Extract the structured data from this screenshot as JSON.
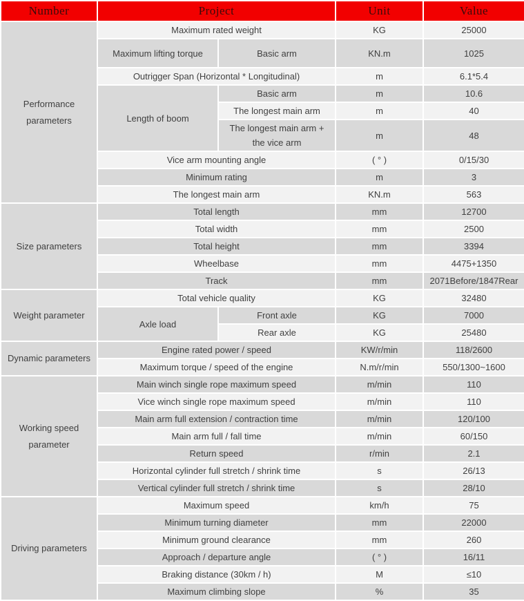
{
  "header": {
    "number": "Number",
    "project": "Project",
    "unit": "Unit",
    "value": "Value"
  },
  "colors": {
    "header_bg": "#f20000",
    "header_text": "#3b0b0b",
    "row_dark": "#d9d9d9",
    "row_light": "#f2f2f2",
    "body_text": "#404040",
    "border": "#ffffff"
  },
  "sections": [
    {
      "label": "Performance parameters",
      "rows": [
        {
          "type": "full",
          "project": "Maximum rated weight",
          "unit": "KG",
          "value": "25000",
          "shade": "light"
        },
        {
          "type": "split",
          "left": "Maximum lifting torque",
          "right": "Basic arm",
          "unit": "KN.m",
          "value": "1025",
          "shade": "dark",
          "tall": true
        },
        {
          "type": "full",
          "project": "Outrigger Span (Horizontal * Longitudinal)",
          "unit": "m",
          "value": "6.1*5.4",
          "shade": "light"
        },
        {
          "type": "group_start",
          "group": "Length of boom",
          "span": 3,
          "right": "Basic arm",
          "unit": "m",
          "value": "10.6",
          "shade": "dark"
        },
        {
          "type": "group_cont",
          "right": "The longest main arm",
          "unit": "m",
          "value": "40",
          "shade": "light"
        },
        {
          "type": "group_cont",
          "right": "The longest main arm +\nthe vice arm",
          "unit": "m",
          "value": "48",
          "shade": "dark",
          "tall": true
        },
        {
          "type": "full",
          "project": "Vice arm mounting angle",
          "unit": "( ° )",
          "value": "0/15/30",
          "shade": "light"
        },
        {
          "type": "full",
          "project": "Minimum rating",
          "unit": "m",
          "value": "3",
          "shade": "dark"
        },
        {
          "type": "full",
          "project": "The longest main arm",
          "unit": "KN.m",
          "value": "563",
          "shade": "light"
        }
      ]
    },
    {
      "label": "Size parameters",
      "rows": [
        {
          "type": "full",
          "project": "Total length",
          "unit": "mm",
          "value": "12700",
          "shade": "dark"
        },
        {
          "type": "full",
          "project": "Total width",
          "unit": "mm",
          "value": "2500",
          "shade": "light"
        },
        {
          "type": "full",
          "project": "Total height",
          "unit": "mm",
          "value": "3394",
          "shade": "dark"
        },
        {
          "type": "full",
          "project": "Wheelbase",
          "unit": "mm",
          "value": "4475+1350",
          "shade": "light"
        },
        {
          "type": "full",
          "project": "Track",
          "unit": "mm",
          "value": "2071Before/1847Rear",
          "shade": "dark"
        }
      ]
    },
    {
      "label": "Weight parameter",
      "rows": [
        {
          "type": "full",
          "project": "Total vehicle quality",
          "unit": "KG",
          "value": "32480",
          "shade": "light"
        },
        {
          "type": "group_start",
          "group": "Axle load",
          "span": 2,
          "right": "Front axle",
          "unit": "KG",
          "value": "7000",
          "shade": "dark"
        },
        {
          "type": "group_cont",
          "right": "Rear axle",
          "unit": "KG",
          "value": "25480",
          "shade": "light"
        }
      ]
    },
    {
      "label": "Dynamic parameters",
      "rows": [
        {
          "type": "full",
          "project": "Engine rated power / speed",
          "unit": "KW/r/min",
          "value": "118/2600",
          "shade": "dark"
        },
        {
          "type": "full",
          "project": "Maximum torque / speed of the engine",
          "unit": "N.m/r/min",
          "value": "550/1300~1600",
          "shade": "light"
        }
      ]
    },
    {
      "label": "Working speed parameter",
      "rows": [
        {
          "type": "full",
          "project": "Main winch single rope maximum speed",
          "unit": "m/min",
          "value": "110",
          "shade": "dark"
        },
        {
          "type": "full",
          "project": "Vice winch single rope maximum speed",
          "unit": "m/min",
          "value": "110",
          "shade": "light"
        },
        {
          "type": "full",
          "project": "Main arm full extension / contraction time",
          "unit": "m/min",
          "value": "120/100",
          "shade": "dark"
        },
        {
          "type": "full",
          "project": "Main arm full / fall time",
          "unit": "m/min",
          "value": "60/150",
          "shade": "light"
        },
        {
          "type": "full",
          "project": "Return speed",
          "unit": "r/min",
          "value": "2.1",
          "shade": "dark"
        },
        {
          "type": "full",
          "project": "Horizontal cylinder full stretch / shrink time",
          "unit": "s",
          "value": "26/13",
          "shade": "light"
        },
        {
          "type": "full",
          "project": "Vertical cylinder full stretch / shrink time",
          "unit": "s",
          "value": "28/10",
          "shade": "dark"
        }
      ]
    },
    {
      "label": "Driving parameters",
      "rows": [
        {
          "type": "full",
          "project": "Maximum speed",
          "unit": "km/h",
          "value": "75",
          "shade": "light"
        },
        {
          "type": "full",
          "project": "Minimum turning diameter",
          "unit": "mm",
          "value": "22000",
          "shade": "dark"
        },
        {
          "type": "full",
          "project": "Minimum ground clearance",
          "unit": "mm",
          "value": "260",
          "shade": "light"
        },
        {
          "type": "full",
          "project": "Approach / departure angle",
          "unit": "( ° )",
          "value": "16/11",
          "shade": "dark"
        },
        {
          "type": "full",
          "project": "Braking distance (30km / h)",
          "unit": "M",
          "value": "≤10",
          "shade": "light"
        },
        {
          "type": "full",
          "project": "Maximum climbing slope",
          "unit": "%",
          "value": "35",
          "shade": "dark"
        }
      ]
    }
  ]
}
